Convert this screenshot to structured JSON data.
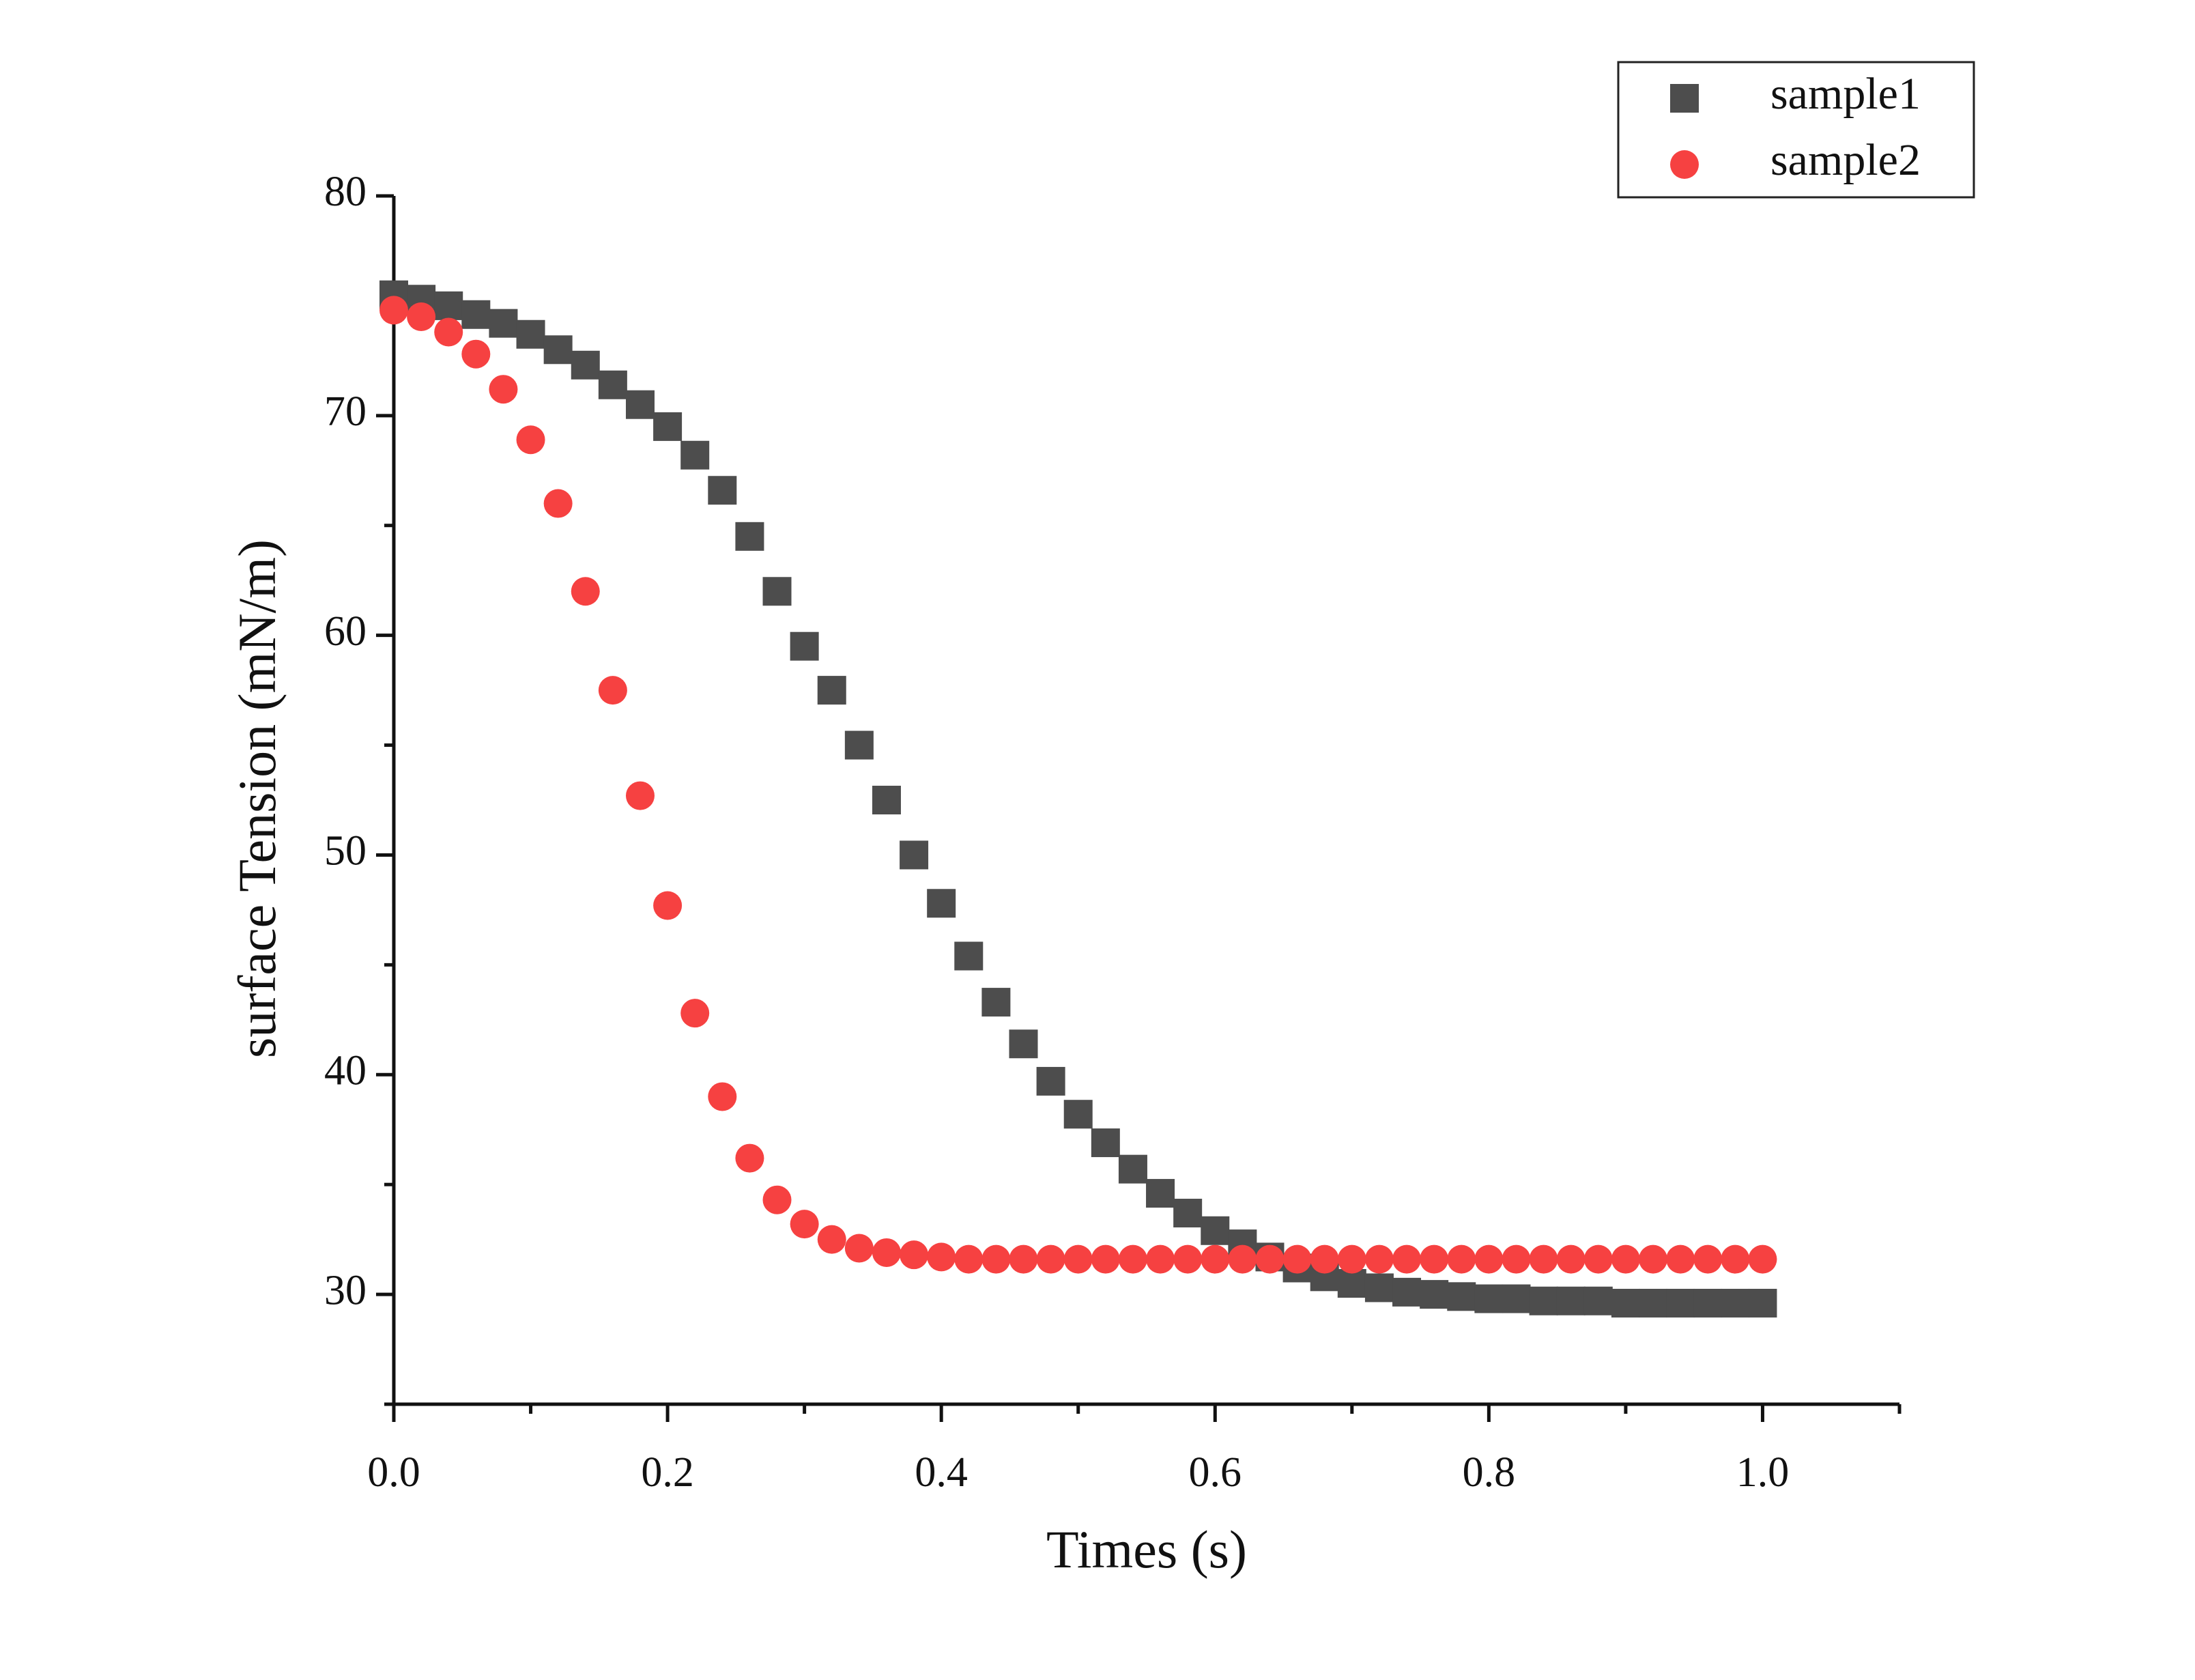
{
  "chart_data": {
    "type": "scatter",
    "xlabel": "Times (s)",
    "ylabel": "surface Tension (mN/m)",
    "xlim": [
      0,
      1.1
    ],
    "ylim": [
      25,
      80
    ],
    "xticks": [
      {
        "value": 0,
        "label": "0.0"
      },
      0.2,
      0.4,
      0.6,
      0.8,
      {
        "value": 1,
        "label": "1.0"
      }
    ],
    "xminorticks": [
      0.1,
      0.3,
      0.5,
      0.7,
      0.9,
      1.1
    ],
    "yticks": [
      30,
      40,
      50,
      60,
      70,
      80
    ],
    "yminorticks": [
      25,
      35,
      45,
      55,
      65,
      75
    ],
    "legend": "upper right",
    "series": [
      {
        "name": "sample1",
        "color": "#4d4d4d",
        "marker": "square",
        "x": [
          0,
          0.02,
          0.04,
          0.06,
          0.08,
          0.1,
          0.12,
          0.14,
          0.16,
          0.18,
          0.2,
          0.22,
          0.24,
          0.26,
          0.28,
          0.3,
          0.32,
          0.34,
          0.36,
          0.38,
          0.4,
          0.42,
          0.44,
          0.46,
          0.48,
          0.5,
          0.52,
          0.54,
          0.56,
          0.58,
          0.6,
          0.62,
          0.64,
          0.66,
          0.68,
          0.7,
          0.72,
          0.74,
          0.76,
          0.78,
          0.8,
          0.82,
          0.84,
          0.86,
          0.88,
          0.9,
          0.92,
          0.94,
          0.96,
          0.98,
          1.0
        ],
        "values": [
          75.5,
          75.3,
          75.0,
          74.6,
          74.2,
          73.7,
          73.0,
          72.3,
          71.4,
          70.5,
          69.5,
          68.2,
          66.6,
          64.5,
          62.0,
          59.5,
          57.5,
          55.0,
          52.5,
          50.0,
          47.8,
          45.4,
          43.3,
          41.4,
          39.7,
          38.2,
          36.9,
          35.7,
          34.6,
          33.7,
          32.9,
          32.3,
          31.7,
          31.2,
          30.8,
          30.5,
          30.3,
          30.1,
          30.0,
          29.9,
          29.8,
          29.8,
          29.7,
          29.7,
          29.7,
          29.6,
          29.6,
          29.6,
          29.6,
          29.6,
          29.6
        ]
      },
      {
        "name": "sample2",
        "color": "#f64141",
        "marker": "circle",
        "x": [
          0,
          0.02,
          0.04,
          0.06,
          0.08,
          0.1,
          0.12,
          0.14,
          0.16,
          0.18,
          0.2,
          0.22,
          0.24,
          0.26,
          0.28,
          0.3,
          0.32,
          0.34,
          0.36,
          0.38,
          0.4,
          0.42,
          0.44,
          0.46,
          0.48,
          0.5,
          0.52,
          0.54,
          0.56,
          0.58,
          0.6,
          0.62,
          0.64,
          0.66,
          0.68,
          0.7,
          0.72,
          0.74,
          0.76,
          0.78,
          0.8,
          0.82,
          0.84,
          0.86,
          0.88,
          0.9,
          0.92,
          0.94,
          0.96,
          0.98,
          1.0
        ],
        "values": [
          74.8,
          74.5,
          73.8,
          72.8,
          71.2,
          68.9,
          66.0,
          62.0,
          57.5,
          52.7,
          47.7,
          42.8,
          39.0,
          36.2,
          34.3,
          33.2,
          32.5,
          32.1,
          31.9,
          31.8,
          31.7,
          31.6,
          31.6,
          31.6,
          31.6,
          31.6,
          31.6,
          31.6,
          31.6,
          31.6,
          31.6,
          31.6,
          31.6,
          31.6,
          31.6,
          31.6,
          31.6,
          31.6,
          31.6,
          31.6,
          31.6,
          31.6,
          31.6,
          31.6,
          31.6,
          31.6,
          31.6,
          31.6,
          31.6,
          31.6,
          31.6
        ]
      }
    ]
  }
}
